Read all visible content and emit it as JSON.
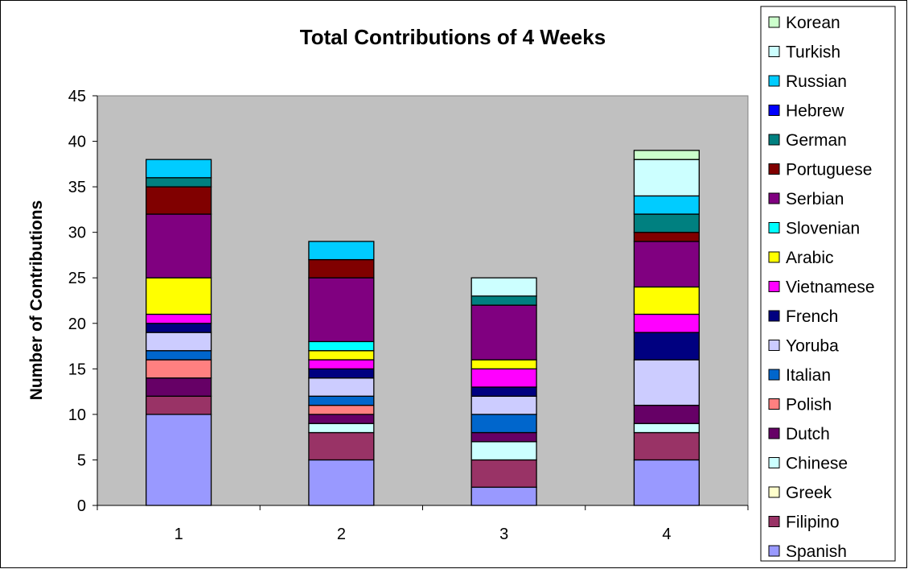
{
  "chart_data": {
    "type": "bar",
    "stacked": true,
    "title": "Total Contributions of 4 Weeks",
    "xlabel": "",
    "ylabel": "Number of Contributions",
    "categories": [
      "1",
      "2",
      "3",
      "4"
    ],
    "ylim": [
      0,
      45
    ],
    "yticks": [
      0,
      5,
      10,
      15,
      20,
      25,
      30,
      35,
      40,
      45
    ],
    "grid": false,
    "plot_background": "#c0c0c0",
    "legend_position": "right",
    "series": [
      {
        "name": "Spanish",
        "color": "#9999ff",
        "values": [
          10,
          5,
          2,
          5
        ]
      },
      {
        "name": "Filipino",
        "color": "#993366",
        "values": [
          2,
          3,
          3,
          3
        ]
      },
      {
        "name": "Greek",
        "color": "#ffffcc",
        "values": [
          0,
          0,
          0,
          0
        ]
      },
      {
        "name": "Chinese",
        "color": "#ccffff",
        "values": [
          0,
          1,
          2,
          1
        ]
      },
      {
        "name": "Dutch",
        "color": "#660066",
        "values": [
          2,
          1,
          1,
          2
        ]
      },
      {
        "name": "Polish",
        "color": "#ff8080",
        "values": [
          2,
          1,
          0,
          0
        ]
      },
      {
        "name": "Italian",
        "color": "#0066cc",
        "values": [
          1,
          1,
          2,
          0
        ]
      },
      {
        "name": "Yoruba",
        "color": "#ccccff",
        "values": [
          2,
          2,
          2,
          5
        ]
      },
      {
        "name": "French",
        "color": "#000080",
        "values": [
          1,
          1,
          1,
          3
        ]
      },
      {
        "name": "Vietnamese",
        "color": "#ff00ff",
        "values": [
          1,
          1,
          2,
          2
        ]
      },
      {
        "name": "Arabic",
        "color": "#ffff00",
        "values": [
          4,
          1,
          1,
          3
        ]
      },
      {
        "name": "Slovenian",
        "color": "#00ffff",
        "values": [
          0,
          1,
          0,
          0
        ]
      },
      {
        "name": "Serbian",
        "color": "#800080",
        "values": [
          7,
          7,
          6,
          5
        ]
      },
      {
        "name": "Portuguese",
        "color": "#800000",
        "values": [
          3,
          2,
          0,
          1
        ]
      },
      {
        "name": "German",
        "color": "#008080",
        "values": [
          1,
          0,
          1,
          2
        ]
      },
      {
        "name": "Hebrew",
        "color": "#0000ff",
        "values": [
          0,
          0,
          0,
          0
        ]
      },
      {
        "name": "Russian",
        "color": "#00ccff",
        "values": [
          2,
          2,
          0,
          2
        ]
      },
      {
        "name": "Turkish",
        "color": "#ccffff",
        "values": [
          0,
          0,
          2,
          4
        ]
      },
      {
        "name": "Korean",
        "color": "#ccffcc",
        "values": [
          0,
          0,
          0,
          1
        ]
      }
    ]
  }
}
